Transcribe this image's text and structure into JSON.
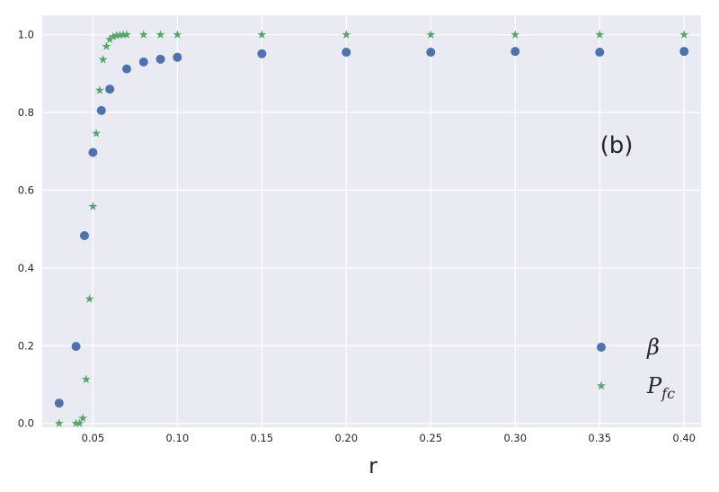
{
  "chart_data": {
    "type": "scatter",
    "xlabel": "r",
    "ylabel": "",
    "xlim": [
      0.02,
      0.41
    ],
    "ylim": [
      -0.01,
      1.05
    ],
    "xticks": [
      "0.05",
      "0.10",
      "0.15",
      "0.20",
      "0.25",
      "0.30",
      "0.35",
      "0.40"
    ],
    "yticks": [
      "0.0",
      "0.2",
      "0.4",
      "0.6",
      "0.8",
      "1.0"
    ],
    "grid": true,
    "legend_position": "lower-right",
    "annotation": "(b)",
    "series": [
      {
        "name": "β",
        "marker": "circle",
        "color": "#4C72B0",
        "x": [
          0.03,
          0.04,
          0.045,
          0.05,
          0.055,
          0.06,
          0.07,
          0.08,
          0.09,
          0.1,
          0.15,
          0.2,
          0.25,
          0.3,
          0.35,
          0.4
        ],
        "y": [
          0.052,
          0.198,
          0.483,
          0.697,
          0.805,
          0.86,
          0.912,
          0.93,
          0.937,
          0.942,
          0.951,
          0.955,
          0.955,
          0.957,
          0.955,
          0.957
        ]
      },
      {
        "name": "P_fc",
        "marker": "star",
        "color": "#55A868",
        "x": [
          0.03,
          0.04,
          0.042,
          0.044,
          0.046,
          0.048,
          0.05,
          0.052,
          0.054,
          0.056,
          0.058,
          0.06,
          0.062,
          0.064,
          0.066,
          0.068,
          0.07,
          0.08,
          0.09,
          0.1,
          0.15,
          0.2,
          0.25,
          0.3,
          0.35,
          0.4
        ],
        "y": [
          0.0,
          0.0,
          0.0,
          0.013,
          0.113,
          0.32,
          0.558,
          0.746,
          0.857,
          0.936,
          0.97,
          0.988,
          0.995,
          0.998,
          0.999,
          1.0,
          1.0,
          1.0,
          1.0,
          1.0,
          1.0,
          1.0,
          1.0,
          1.0,
          1.0,
          1.0
        ]
      }
    ]
  }
}
